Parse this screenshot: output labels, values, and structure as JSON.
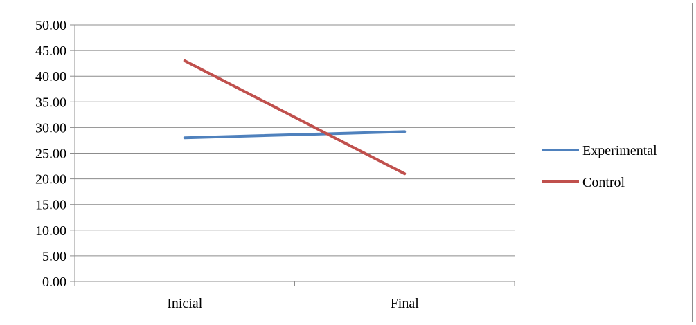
{
  "chart_data": {
    "type": "line",
    "title": "",
    "xlabel": "",
    "ylabel": "",
    "categories": [
      "Inicial",
      "Final"
    ],
    "series": [
      {
        "name": "Experimental",
        "values": [
          28.0,
          29.2
        ],
        "color": "#4f81bd"
      },
      {
        "name": "Control",
        "values": [
          43.0,
          21.0
        ],
        "color": "#c0504d"
      }
    ],
    "ylim": [
      0,
      50
    ],
    "y_ticks": [
      "0.00",
      "5.00",
      "10.00",
      "15.00",
      "20.00",
      "25.00",
      "30.00",
      "35.00",
      "40.00",
      "45.00",
      "50.00"
    ],
    "grid": true,
    "legend_position": "right"
  }
}
